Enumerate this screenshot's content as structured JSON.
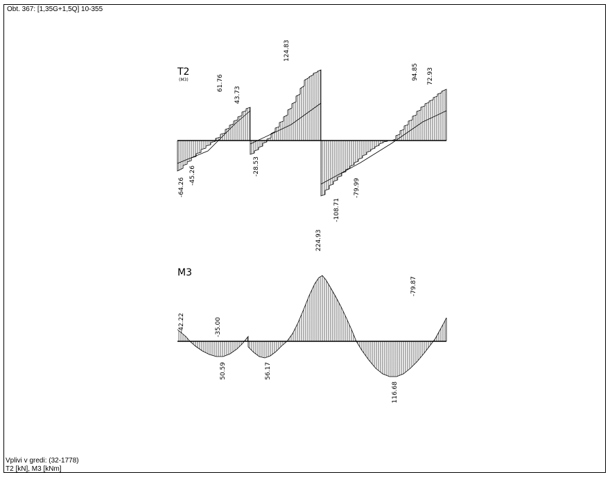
{
  "header": {
    "title": "Obt. 367: [1,35G+1,5Q] 10-355"
  },
  "footer": {
    "line1": "Vplivi v gredi:  (32-1778)",
    "line2": "T2 [kN], M3 [kNm]"
  },
  "diagrams": [
    {
      "name": "T2",
      "subtitle": "(M3)",
      "labels": [
        "-64.26",
        "-45.26",
        "61.76",
        "43.73",
        "-28.53",
        "124.83",
        "-108.71",
        "-79.99",
        "94.85",
        "72.93"
      ]
    },
    {
      "name": "M3",
      "subtitle": "",
      "labels": [
        "-42.22",
        "-35.00",
        "50.59",
        "56.17",
        "224.93",
        "116.68",
        "-79.87"
      ]
    }
  ]
}
